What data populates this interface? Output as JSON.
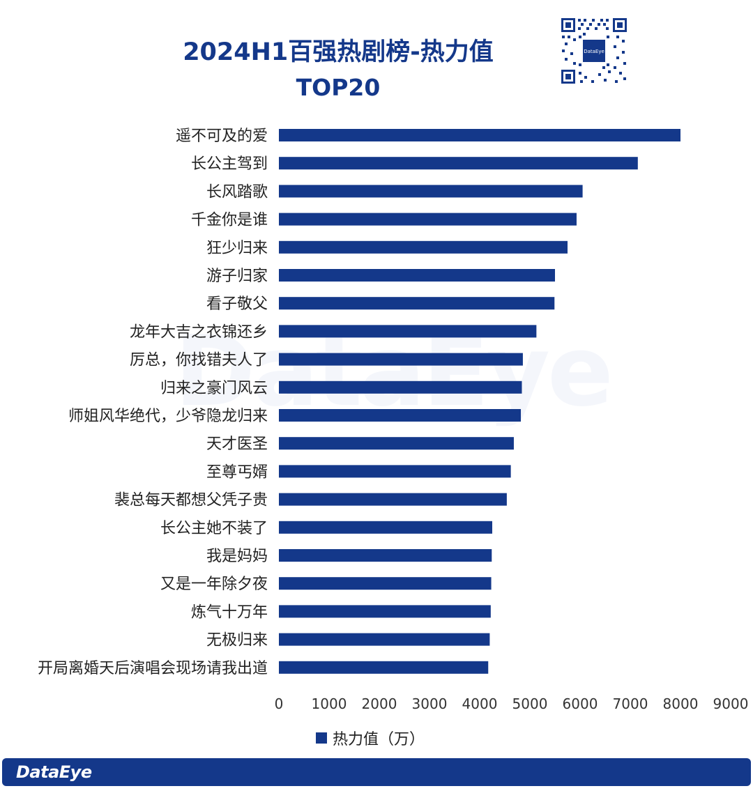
{
  "title": "2024H1百强热剧榜-热力值",
  "subtitle": "TOP20",
  "watermark": "DataEye",
  "qr_code": {
    "logo_text": "DataEye"
  },
  "footer": {
    "brand": "DataEye"
  },
  "colors": {
    "bar": "#14388a",
    "title": "#14388a",
    "footer": "#14388a"
  },
  "chart_data": {
    "type": "bar",
    "orientation": "horizontal",
    "categories": [
      "遥不可及的爱",
      "长公主驾到",
      "长风踏歌",
      "千金你是谁",
      "狂少归来",
      "游子归家",
      "看子敬父",
      "龙年大吉之衣锦还乡",
      "厉总，你找错夫人了",
      "归来之豪门风云",
      "师姐风华绝代，少爷隐龙归来",
      "天才医圣",
      "至尊丐婿",
      "裴总每天都想父凭子贵",
      "长公主她不装了",
      "我是妈妈",
      "又是一年除夕夜",
      "炼气十万年",
      "无极归来",
      "开局离婚天后演唱会现场请我出道"
    ],
    "series": [
      {
        "name": "热力值（万）",
        "values": [
          8000,
          7150,
          6050,
          5930,
          5750,
          5500,
          5490,
          5130,
          4860,
          4840,
          4820,
          4680,
          4620,
          4540,
          4250,
          4240,
          4230,
          4220,
          4200,
          4170
        ]
      }
    ],
    "xlim": [
      0,
      9000
    ],
    "xticks": [
      0,
      1000,
      2000,
      3000,
      4000,
      5000,
      6000,
      7000,
      8000,
      9000
    ],
    "grid": false,
    "legend": "bottom"
  }
}
